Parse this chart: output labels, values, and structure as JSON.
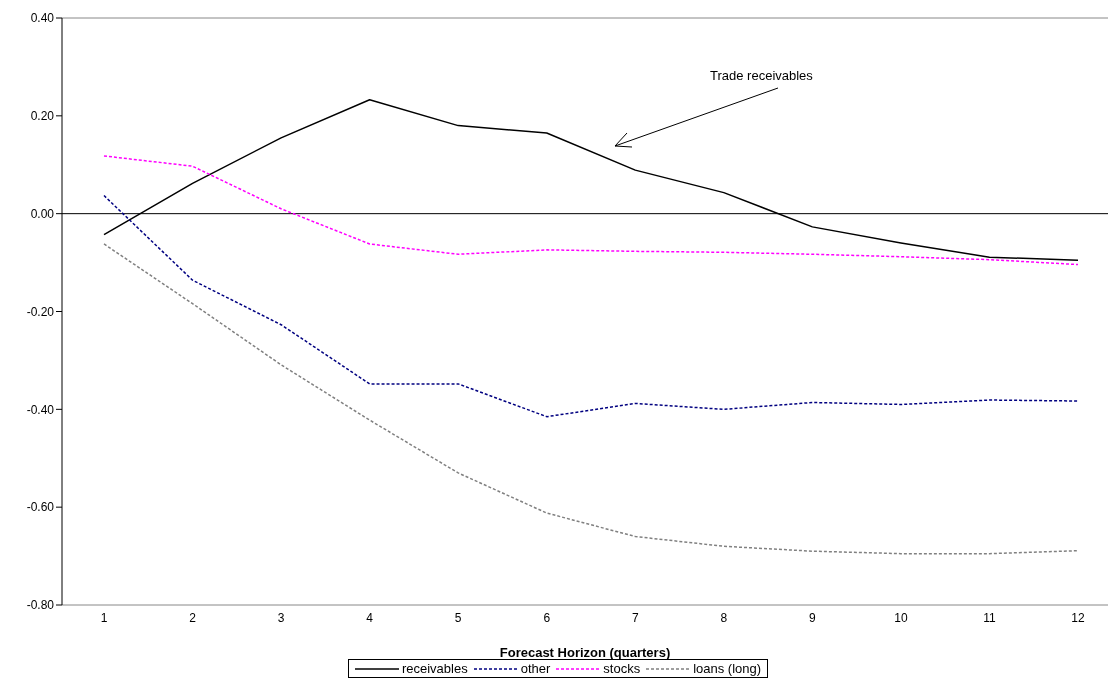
{
  "chart_data": {
    "type": "line",
    "xlabel": "Forecast Horizon (quarters)",
    "categories": [
      "1",
      "2",
      "3",
      "4",
      "5",
      "6",
      "7",
      "8",
      "9",
      "10",
      "11",
      "12"
    ],
    "series": [
      {
        "name": "receivables",
        "color": "#000000",
        "line_style": "solid",
        "values": [
          -0.043,
          0.062,
          0.155,
          0.233,
          0.18,
          0.165,
          0.089,
          0.043,
          -0.027,
          -0.06,
          -0.089,
          -0.095
        ]
      },
      {
        "name": "other",
        "color": "#000080",
        "line_style": "dashed",
        "values": [
          0.037,
          -0.136,
          -0.227,
          -0.348,
          -0.348,
          -0.415,
          -0.388,
          -0.4,
          -0.386,
          -0.39,
          -0.381,
          -0.383
        ]
      },
      {
        "name": "stocks",
        "color": "#ff00ff",
        "line_style": "dashed",
        "values": [
          0.118,
          0.097,
          0.01,
          -0.062,
          -0.083,
          -0.074,
          -0.077,
          -0.079,
          -0.083,
          -0.088,
          -0.094,
          -0.104
        ]
      },
      {
        "name": "loans (long)",
        "color": "#808080",
        "line_style": "dashed",
        "values": [
          -0.062,
          -0.184,
          -0.309,
          -0.422,
          -0.53,
          -0.612,
          -0.66,
          -0.68,
          -0.69,
          -0.695,
          -0.695,
          -0.689
        ]
      }
    ],
    "ylim": [
      -0.8,
      0.4
    ],
    "yticks": [
      {
        "value": -0.8,
        "label": "-0.80"
      },
      {
        "value": -0.6,
        "label": "-0.60"
      },
      {
        "value": -0.4,
        "label": "-0.40"
      },
      {
        "value": -0.2,
        "label": "-0.20"
      },
      {
        "value": 0,
        "label": "0.00"
      },
      {
        "value": 0.2,
        "label": "0.20"
      },
      {
        "value": 0.4,
        "label": "0.40"
      }
    ],
    "ref_lines": [
      {
        "axis": "y",
        "value": 0,
        "color": "#000000"
      }
    ],
    "annotations": [
      "Trade receivables"
    ],
    "grid": false,
    "legend": "bottom",
    "marker": "none"
  }
}
